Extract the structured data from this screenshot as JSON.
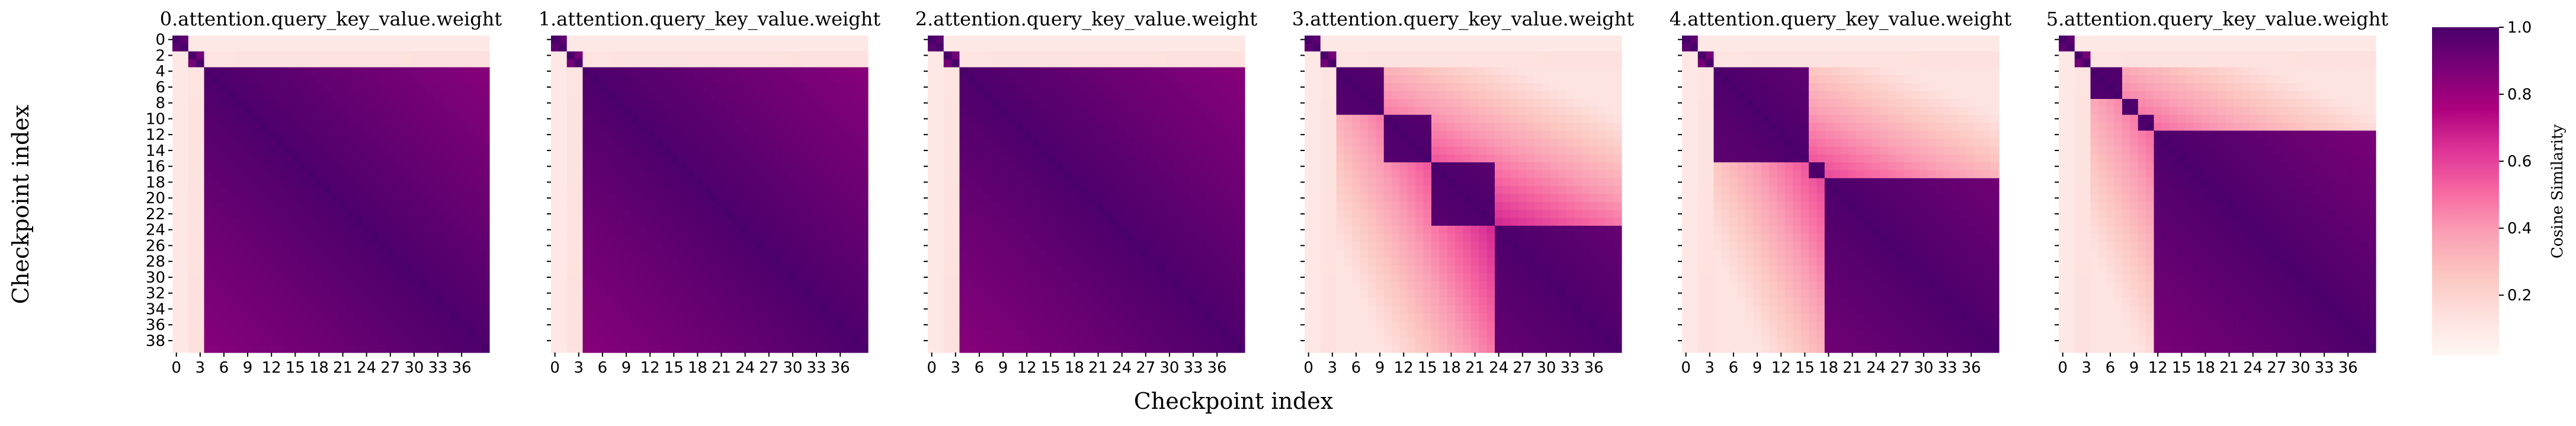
{
  "figure": {
    "ylabel": "Checkpoint index",
    "xlabel": "Checkpoint index",
    "colorbar_label": "Cosine Similarity"
  },
  "chart_data": {
    "type": "heatmap",
    "grid_size": 40,
    "colormap": "RdPu",
    "colormap_stops": [
      "#fff7f3",
      "#fde0dd",
      "#fcc5c0",
      "#fa9fb5",
      "#f768a1",
      "#dd3497",
      "#ae017e",
      "#7a0177",
      "#49006a"
    ],
    "value_range": [
      0.02,
      1.0
    ],
    "x_tick_labels": [
      "0",
      "3",
      "6",
      "9",
      "12",
      "15",
      "18",
      "21",
      "24",
      "27",
      "30",
      "33",
      "36"
    ],
    "y_tick_labels": [
      "0",
      "2",
      "4",
      "6",
      "8",
      "10",
      "12",
      "14",
      "16",
      "18",
      "20",
      "22",
      "24",
      "26",
      "28",
      "30",
      "32",
      "34",
      "36",
      "38"
    ],
    "colorbar_ticks": [
      "0.2",
      "0.4",
      "0.6",
      "0.8",
      "1.0"
    ],
    "colorbar_tick_values": [
      0.2,
      0.4,
      0.6,
      0.8,
      1.0
    ],
    "panels": [
      {
        "title": "0.attention.query_key_value.weight",
        "show_yticklabels": true,
        "blocks": [
          0,
          2,
          4,
          40
        ]
      },
      {
        "title": "1.attention.query_key_value.weight",
        "show_yticklabels": false,
        "blocks": [
          0,
          2,
          4,
          40
        ]
      },
      {
        "title": "2.attention.query_key_value.weight",
        "show_yticklabels": false,
        "blocks": [
          0,
          2,
          4,
          40
        ]
      },
      {
        "title": "3.attention.query_key_value.weight",
        "show_yticklabels": false,
        "blocks": [
          0,
          2,
          4,
          10,
          16,
          24,
          40
        ]
      },
      {
        "title": "4.attention.query_key_value.weight",
        "show_yticklabels": false,
        "blocks": [
          0,
          2,
          4,
          16,
          18,
          40
        ]
      },
      {
        "title": "5.attention.query_key_value.weight",
        "show_yticklabels": false,
        "blocks": [
          0,
          2,
          4,
          8,
          10,
          12,
          40
        ]
      }
    ]
  }
}
